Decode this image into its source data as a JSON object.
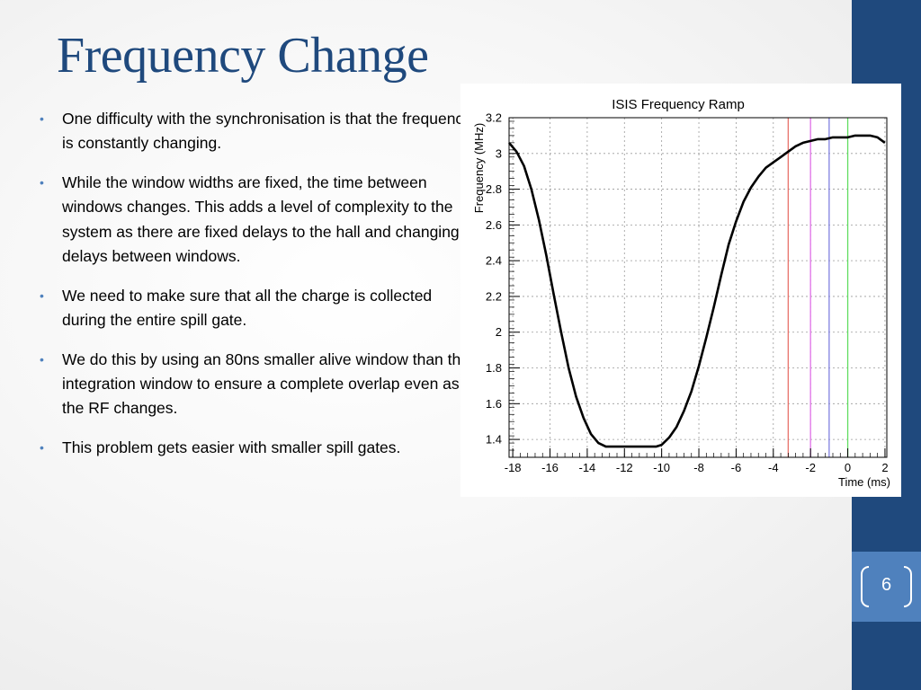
{
  "slide": {
    "title": "Frequency Change",
    "page_number": "6",
    "bullets": [
      "One difficulty with the synchronisation is that the frequency is constantly changing.",
      "While the window widths are fixed, the time between windows changes. This adds a level of complexity to the system as there are fixed delays to the hall and changing delays between windows.",
      "We need to make sure that all the charge is collected during the entire spill gate.",
      "We do this by using an 80ns smaller alive window than the integration window to ensure a complete overlap even as the RF changes.",
      "This problem gets easier with smaller spill gates."
    ]
  },
  "colors": {
    "title": "#1f497d",
    "sidebar": "#1f497d",
    "page_box": "#4f81bd",
    "bullet": "#4f81bd"
  },
  "chart_data": {
    "type": "line",
    "title": "ISIS Frequency Ramp",
    "xlabel": "Time (ms)",
    "ylabel": "Frequency (MHz)",
    "xlim": [
      -18.2,
      2.1
    ],
    "ylim": [
      1.3,
      3.2
    ],
    "x_ticks": [
      -18,
      -16,
      -14,
      -12,
      -10,
      -8,
      -6,
      -4,
      -2,
      0,
      2
    ],
    "y_ticks": [
      1.4,
      1.6,
      1.8,
      2,
      2.2,
      2.4,
      2.6,
      2.8,
      3,
      3.2
    ],
    "y_tick_labels": [
      "1.4",
      "1.6",
      "1.8",
      "2",
      "2.2",
      "2.4",
      "2.6",
      "2.8",
      "3",
      "3.2"
    ],
    "grid": true,
    "series": [
      {
        "color": "#000000",
        "x": [
          -18.2,
          -17.8,
          -17.4,
          -17.0,
          -16.6,
          -16.2,
          -15.8,
          -15.4,
          -15.0,
          -14.6,
          -14.2,
          -13.8,
          -13.4,
          -13.0,
          -12.6,
          -12.0,
          -11.0,
          -10.3,
          -10.0,
          -9.6,
          -9.2,
          -8.8,
          -8.4,
          -8.0,
          -7.6,
          -7.2,
          -6.8,
          -6.4,
          -6.0,
          -5.6,
          -5.2,
          -4.8,
          -4.4,
          -4.0,
          -3.6,
          -3.2,
          -2.8,
          -2.4,
          -2.0,
          -1.6,
          -1.2,
          -0.8,
          -0.4,
          0.0,
          0.4,
          0.8,
          1.2,
          1.6,
          2.0
        ],
        "y": [
          3.06,
          3.01,
          2.93,
          2.8,
          2.63,
          2.43,
          2.21,
          2.0,
          1.8,
          1.64,
          1.52,
          1.43,
          1.38,
          1.36,
          1.36,
          1.36,
          1.36,
          1.36,
          1.37,
          1.41,
          1.47,
          1.56,
          1.67,
          1.81,
          1.97,
          2.14,
          2.32,
          2.49,
          2.62,
          2.73,
          2.81,
          2.87,
          2.92,
          2.95,
          2.98,
          3.01,
          3.04,
          3.06,
          3.07,
          3.08,
          3.08,
          3.09,
          3.09,
          3.09,
          3.1,
          3.1,
          3.1,
          3.09,
          3.06
        ]
      }
    ],
    "markers": [
      {
        "x": -3.2,
        "color": "#e8736c"
      },
      {
        "x": -2.0,
        "color": "#e070e8"
      },
      {
        "x": -1.0,
        "color": "#8080e0"
      },
      {
        "x": 0.0,
        "color": "#60dd60"
      }
    ]
  }
}
